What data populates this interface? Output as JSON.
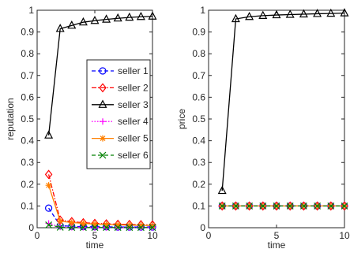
{
  "chart_data": [
    {
      "type": "line",
      "xlabel": "time",
      "ylabel": "reputation",
      "xlim": [
        0,
        10
      ],
      "ylim": [
        0,
        1
      ],
      "xticks": [
        0,
        5,
        10
      ],
      "yticks": [
        0,
        0.1,
        0.2,
        0.3,
        0.4,
        0.5,
        0.6,
        0.7,
        0.8,
        0.9,
        1
      ],
      "grid": false,
      "legend_position": "right",
      "x": [
        1,
        2,
        3,
        4,
        5,
        6,
        7,
        8,
        9,
        10
      ],
      "series": [
        {
          "name": "seller 1",
          "color": "#0000ff",
          "marker": "circle",
          "line": "dashed",
          "values": [
            0.09,
            0.01,
            0.006,
            0.005,
            0.004,
            0.004,
            0.003,
            0.003,
            0.003,
            0.003
          ]
        },
        {
          "name": "seller 2",
          "color": "#ff0000",
          "marker": "diamond",
          "line": "dashdot",
          "values": [
            0.245,
            0.035,
            0.028,
            0.023,
            0.02,
            0.018,
            0.016,
            0.015,
            0.014,
            0.013
          ]
        },
        {
          "name": "seller 3",
          "color": "#000000",
          "marker": "triangle",
          "line": "solid",
          "values": [
            0.425,
            0.915,
            0.93,
            0.945,
            0.952,
            0.958,
            0.963,
            0.967,
            0.97,
            0.972
          ]
        },
        {
          "name": "seller 4",
          "color": "#ff00ff",
          "marker": "plus",
          "line": "dotted",
          "values": [
            0.02,
            0.003,
            0.002,
            0.002,
            0.001,
            0.001,
            0.001,
            0.001,
            0.001,
            0.001
          ]
        },
        {
          "name": "seller 5",
          "color": "#ff8000",
          "marker": "asterisk",
          "line": "solid",
          "values": [
            0.195,
            0.03,
            0.024,
            0.02,
            0.017,
            0.015,
            0.013,
            0.012,
            0.011,
            0.01
          ]
        },
        {
          "name": "seller 6",
          "color": "#008000",
          "marker": "x",
          "line": "dashed",
          "values": [
            0.013,
            0.002,
            0.001,
            0.001,
            0.001,
            0.001,
            0.001,
            0.001,
            0.001,
            0.001
          ]
        }
      ]
    },
    {
      "type": "line",
      "xlabel": "time",
      "ylabel": "price",
      "xlim": [
        0,
        10
      ],
      "ylim": [
        0,
        1
      ],
      "xticks": [
        0,
        5,
        10
      ],
      "yticks": [
        0,
        0.1,
        0.2,
        0.3,
        0.4,
        0.5,
        0.6,
        0.7,
        0.8,
        0.9,
        1
      ],
      "grid": false,
      "x": [
        1,
        2,
        3,
        4,
        5,
        6,
        7,
        8,
        9,
        10
      ],
      "series": [
        {
          "color": "#0000ff",
          "marker": "circle",
          "line": "dashed",
          "values": [
            0.1,
            0.1,
            0.1,
            0.1,
            0.1,
            0.1,
            0.1,
            0.1,
            0.1,
            0.1
          ]
        },
        {
          "color": "#ff0000",
          "marker": "diamond",
          "line": "dashdot",
          "values": [
            0.1,
            0.1,
            0.1,
            0.1,
            0.1,
            0.1,
            0.1,
            0.1,
            0.1,
            0.1
          ]
        },
        {
          "color": "#000000",
          "marker": "triangle",
          "line": "solid",
          "values": [
            0.17,
            0.96,
            0.97,
            0.975,
            0.978,
            0.98,
            0.982,
            0.984,
            0.985,
            0.987
          ]
        },
        {
          "color": "#ff00ff",
          "marker": "plus",
          "line": "dotted",
          "values": [
            0.1,
            0.1,
            0.1,
            0.1,
            0.1,
            0.1,
            0.1,
            0.1,
            0.1,
            0.1
          ]
        },
        {
          "color": "#ff8000",
          "marker": "asterisk",
          "line": "solid",
          "values": [
            0.1,
            0.1,
            0.1,
            0.1,
            0.1,
            0.1,
            0.1,
            0.1,
            0.1,
            0.1
          ]
        },
        {
          "color": "#008000",
          "marker": "x",
          "line": "dashed",
          "values": [
            0.1,
            0.1,
            0.1,
            0.1,
            0.1,
            0.1,
            0.1,
            0.1,
            0.1,
            0.1
          ]
        }
      ]
    }
  ]
}
